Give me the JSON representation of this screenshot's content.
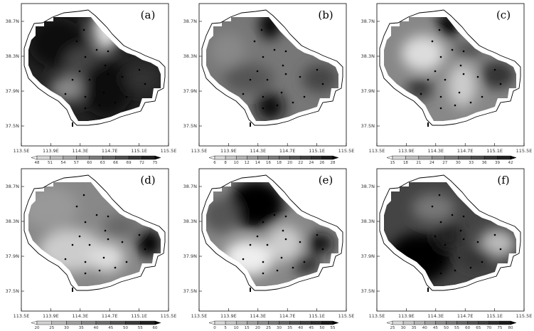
{
  "lat_labels": [
    "38.7N",
    "38.3N",
    "37.9N",
    "37.5N"
  ],
  "lon_labels": [
    "113.5E",
    "113.9E",
    "114.3E",
    "114.7E",
    "115.1E",
    "115.5E"
  ],
  "panels": [
    {
      "label": "(a)",
      "colorbar": [
        48,
        51,
        54,
        57,
        60,
        63,
        66,
        69,
        72,
        75
      ]
    },
    {
      "label": "(b)",
      "colorbar": [
        6,
        8,
        10,
        12,
        14,
        16,
        18,
        20,
        22,
        24,
        26,
        28
      ]
    },
    {
      "label": "(c)",
      "colorbar": [
        15,
        18,
        21,
        24,
        27,
        30,
        33,
        36,
        39,
        42
      ]
    },
    {
      "label": "(d)",
      "colorbar": [
        20,
        25,
        30,
        35,
        40,
        45,
        50,
        55,
        60
      ]
    },
    {
      "label": "(e)",
      "colorbar": [
        0,
        5,
        10,
        15,
        20,
        25,
        30,
        35,
        40,
        45,
        50,
        55
      ]
    },
    {
      "label": "(f)",
      "colorbar": [
        25,
        30,
        35,
        40,
        45,
        50,
        55,
        60,
        65,
        70,
        75,
        80
      ]
    }
  ]
}
